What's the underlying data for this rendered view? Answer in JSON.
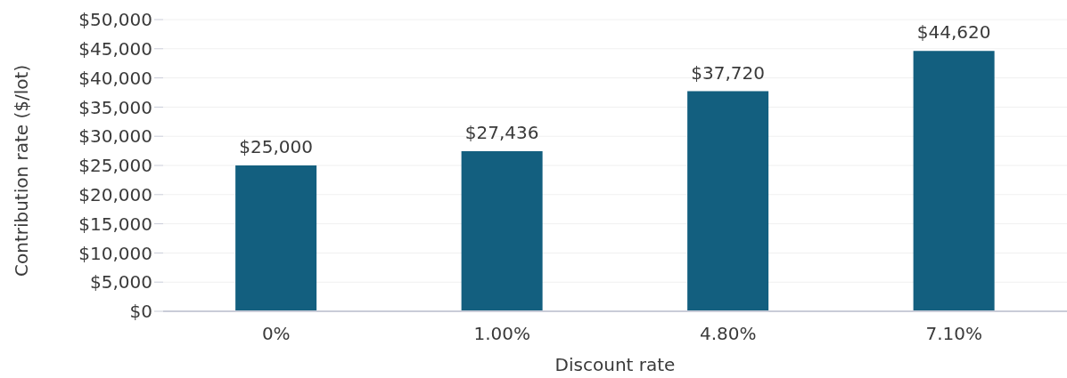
{
  "chart_data": {
    "type": "bar",
    "xlabel": "Discount rate",
    "ylabel": "Contribution rate ($/lot)",
    "categories": [
      "0%",
      "1.00%",
      "4.80%",
      "7.10%"
    ],
    "values": [
      25000,
      27436,
      37720,
      44620
    ],
    "value_labels": [
      "$25,000",
      "$27,436",
      "$37,720",
      "$44,620"
    ],
    "color": "#135f7f",
    "ylim": [
      0,
      50000
    ],
    "yticks": [
      {
        "value": 0,
        "label": "$0"
      },
      {
        "value": 5000,
        "label": "$5,000"
      },
      {
        "value": 10000,
        "label": "$10,000"
      },
      {
        "value": 15000,
        "label": "$15,000"
      },
      {
        "value": 20000,
        "label": "$20,000"
      },
      {
        "value": 25000,
        "label": "$25,000"
      },
      {
        "value": 30000,
        "label": "$30,000"
      },
      {
        "value": 35000,
        "label": "$35,000"
      },
      {
        "value": 40000,
        "label": "$40,000"
      },
      {
        "value": 45000,
        "label": "$45,000"
      },
      {
        "value": 50000,
        "label": "$50,000"
      }
    ],
    "grid": "y"
  }
}
